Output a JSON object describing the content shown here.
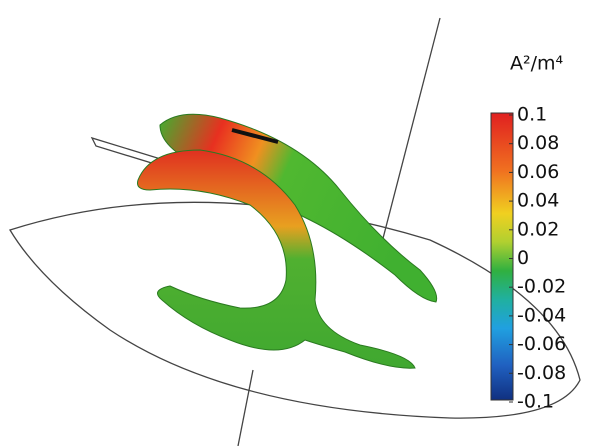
{
  "colorbar": {
    "unit": "A²/m⁴",
    "lim": [
      -0.1,
      0.1
    ],
    "ticks": [
      0.1,
      0.08,
      0.06,
      0.04,
      0.02,
      0,
      -0.02,
      -0.04,
      -0.06,
      -0.08,
      -0.1
    ]
  }
}
